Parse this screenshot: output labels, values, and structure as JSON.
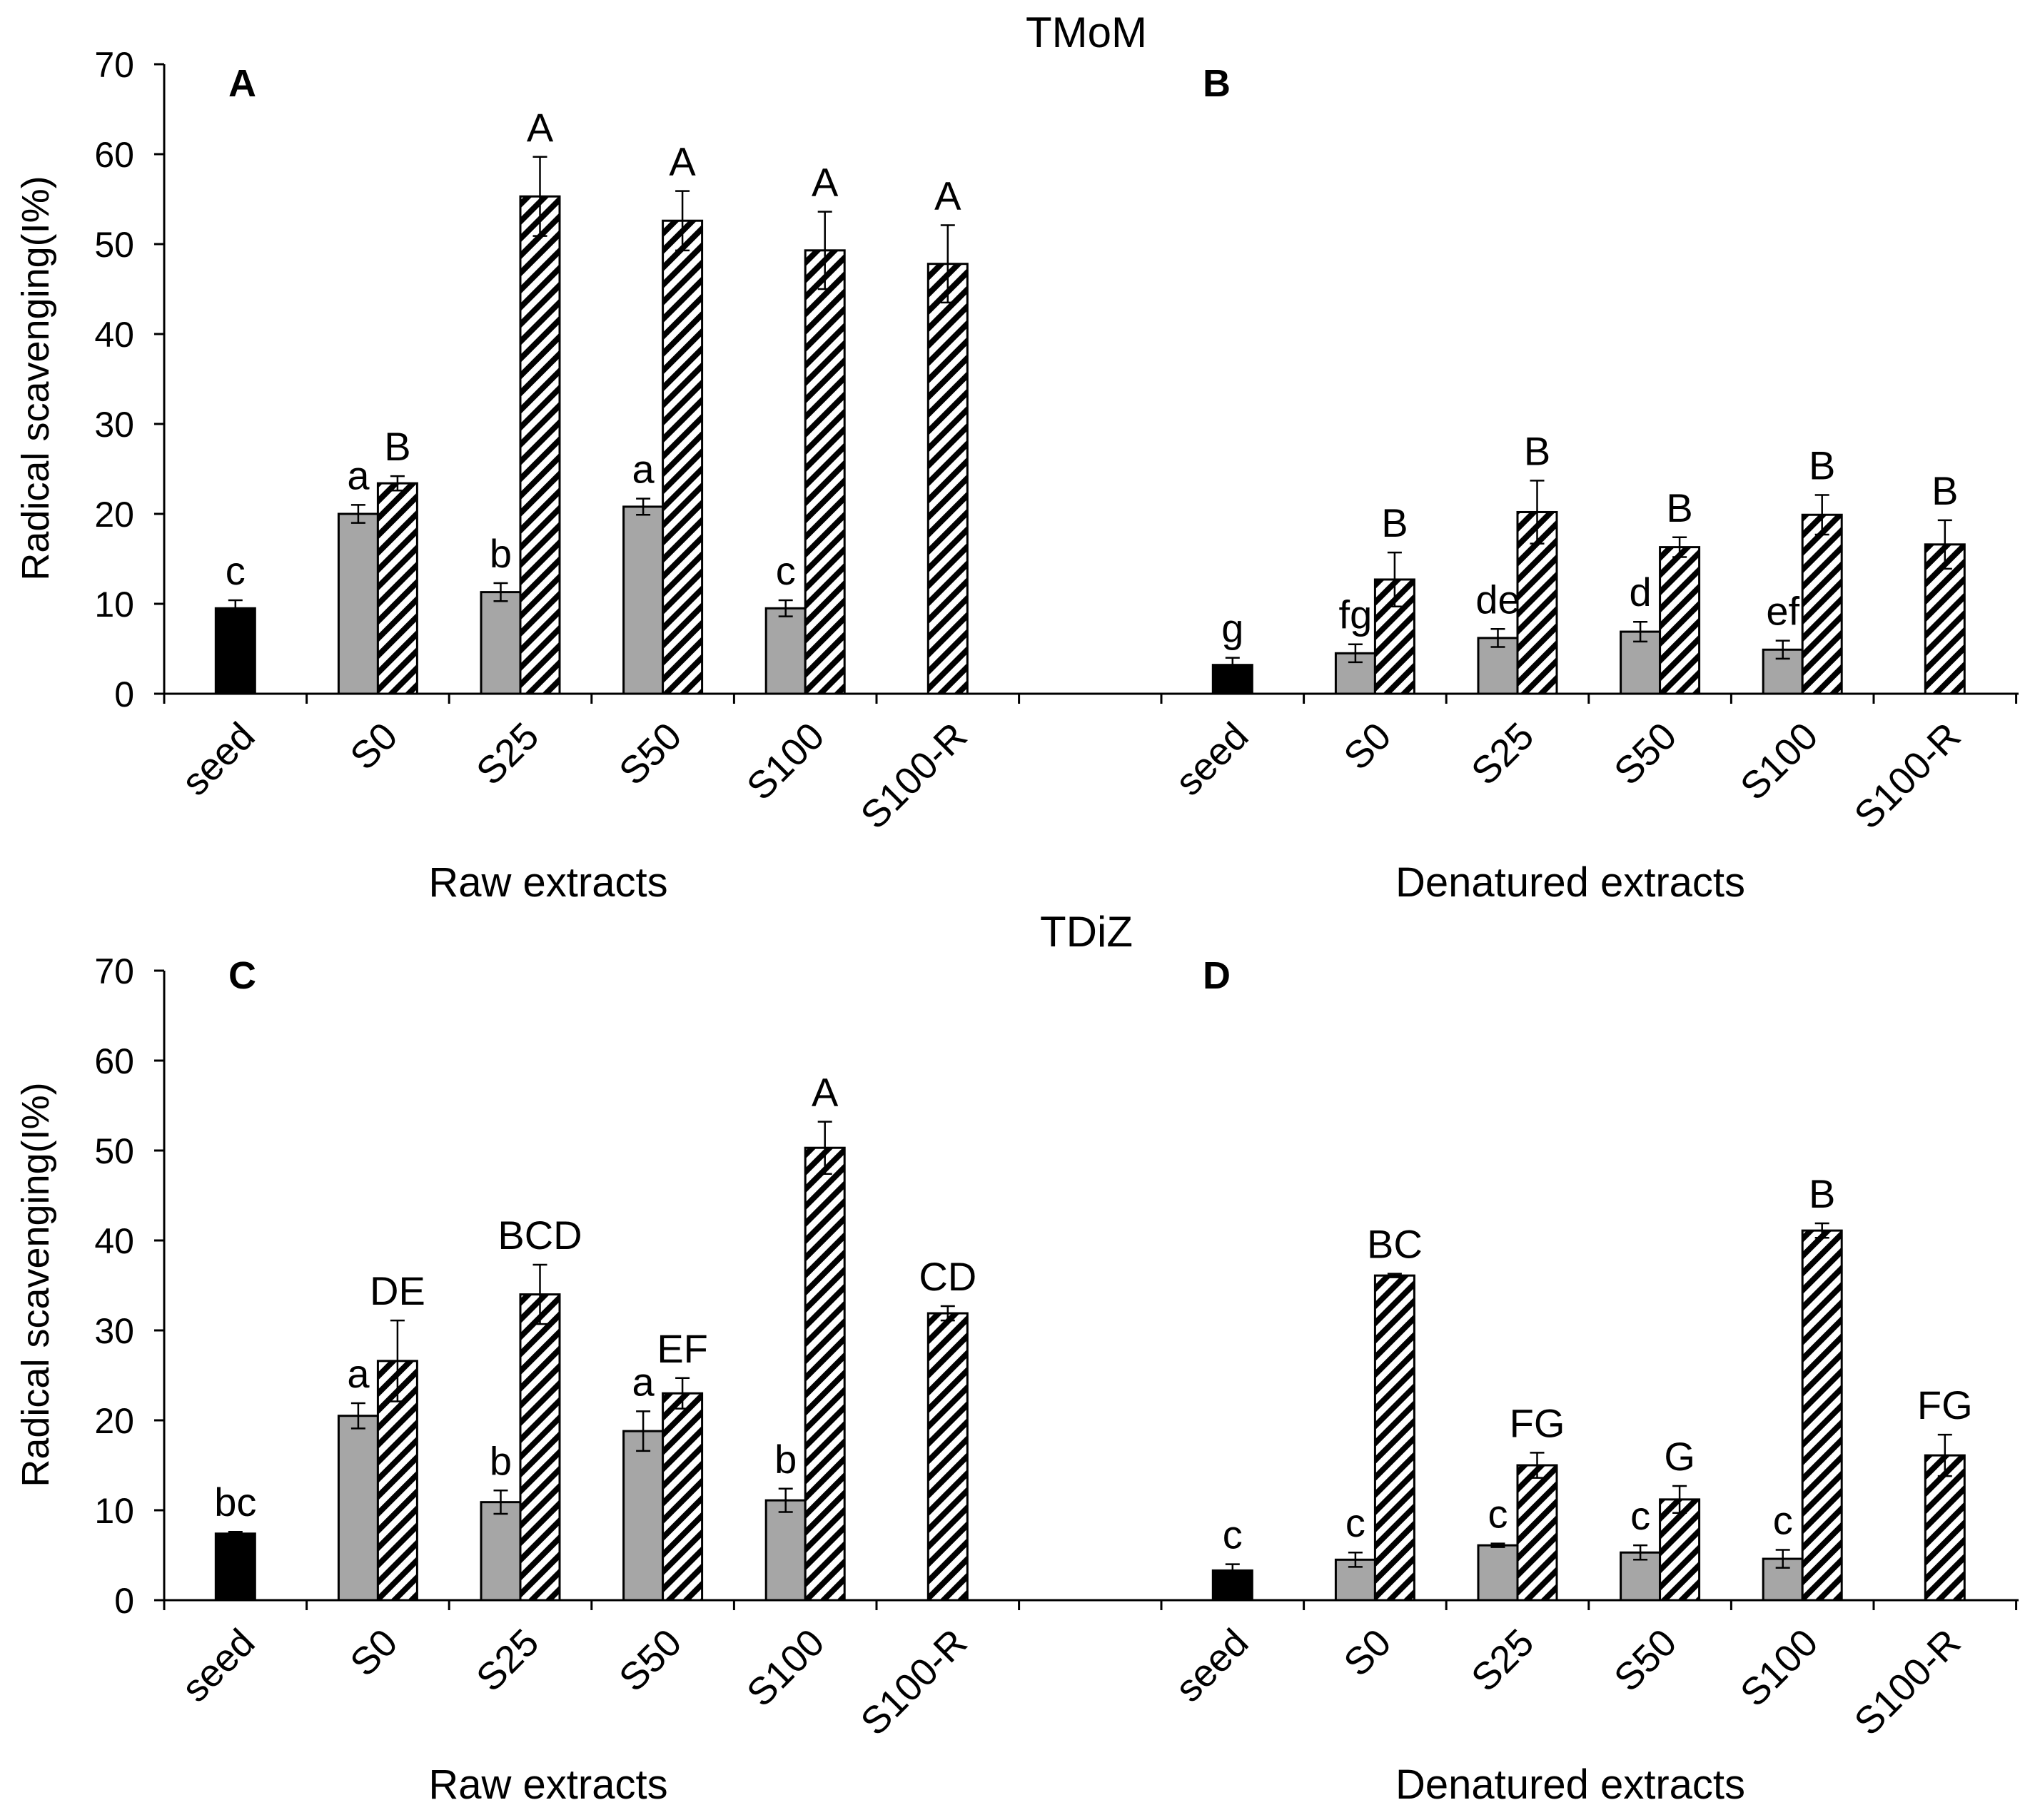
{
  "colors": {
    "seed": "#000000",
    "gray": "#a6a6a6",
    "hatch": "#000000",
    "axis": "#000000"
  },
  "chart_data": [
    {
      "type": "bar",
      "title": "TMoM",
      "ylabel": "Radical scavenging(I%)",
      "ylim": [
        0,
        70
      ],
      "yticks": [
        "0",
        "10",
        "20",
        "30",
        "40",
        "50",
        "60",
        "70"
      ],
      "legend": "none",
      "panels": [
        {
          "letter": "A",
          "xlabel": "Raw extracts",
          "categories": [
            "seed",
            "S0",
            "S25",
            "S50",
            "S100",
            "S100-R"
          ],
          "series": [
            {
              "name": "seed",
              "style": "black",
              "values": [
                9.5,
                null,
                null,
                null,
                null,
                null
              ],
              "errors": [
                0.9,
                null,
                null,
                null,
                null,
                null
              ],
              "labels": [
                "c",
                null,
                null,
                null,
                null,
                null
              ]
            },
            {
              "name": "gray",
              "style": "gray",
              "values": [
                null,
                20.0,
                11.3,
                20.8,
                9.5,
                null
              ],
              "errors": [
                null,
                1.0,
                1.0,
                0.9,
                0.9,
                null
              ],
              "labels": [
                null,
                "a",
                "b",
                "a",
                "c",
                null
              ]
            },
            {
              "name": "hatch",
              "style": "hatch",
              "values": [
                null,
                23.4,
                55.3,
                52.6,
                49.3,
                47.8
              ],
              "errors": [
                null,
                0.8,
                4.4,
                3.3,
                4.3,
                4.3
              ],
              "labels": [
                null,
                "B",
                "A",
                "A",
                "A",
                "A"
              ]
            }
          ]
        },
        {
          "letter": "B",
          "xlabel": "Denatured extracts",
          "categories": [
            "seed",
            "S0",
            "S25",
            "S50",
            "S100",
            "S100-R"
          ],
          "series": [
            {
              "name": "seed",
              "style": "black",
              "values": [
                3.2,
                null,
                null,
                null,
                null,
                null
              ],
              "errors": [
                0.8,
                null,
                null,
                null,
                null,
                null
              ],
              "labels": [
                "g",
                null,
                null,
                null,
                null,
                null
              ]
            },
            {
              "name": "gray",
              "style": "gray",
              "values": [
                null,
                4.5,
                6.2,
                6.9,
                4.9,
                null
              ],
              "errors": [
                null,
                1.0,
                1.0,
                1.1,
                1.0,
                null
              ],
              "labels": [
                null,
                "fg",
                "de",
                "d",
                "ef",
                null
              ]
            },
            {
              "name": "hatch",
              "style": "hatch",
              "values": [
                null,
                12.7,
                20.2,
                16.3,
                19.9,
                16.6
              ],
              "errors": [
                null,
                3.0,
                3.5,
                1.1,
                2.2,
                2.7
              ],
              "labels": [
                null,
                "B",
                "B",
                "B",
                "B",
                "B"
              ]
            }
          ]
        }
      ]
    },
    {
      "type": "bar",
      "title": "TDiZ",
      "ylabel": "Radical scavenging(I%)",
      "ylim": [
        0,
        70
      ],
      "yticks": [
        "0",
        "10",
        "20",
        "30",
        "40",
        "50",
        "60",
        "70"
      ],
      "legend": "none",
      "panels": [
        {
          "letter": "C",
          "xlabel": "Raw extracts",
          "categories": [
            "seed",
            "S0",
            "S25",
            "S50",
            "S100",
            "S100-R"
          ],
          "series": [
            {
              "name": "seed",
              "style": "black",
              "values": [
                7.4,
                null,
                null,
                null,
                null,
                null
              ],
              "errors": [
                0.2,
                null,
                null,
                null,
                null,
                null
              ],
              "labels": [
                "bc",
                null,
                null,
                null,
                null,
                null
              ]
            },
            {
              "name": "gray",
              "style": "gray",
              "values": [
                null,
                20.5,
                10.9,
                18.8,
                11.1,
                null
              ],
              "errors": [
                null,
                1.4,
                1.3,
                2.2,
                1.3,
                null
              ],
              "labels": [
                null,
                "a",
                "b",
                "a",
                "b",
                null
              ]
            },
            {
              "name": "hatch",
              "style": "hatch",
              "values": [
                null,
                26.6,
                34.0,
                23.0,
                50.3,
                31.9
              ],
              "errors": [
                null,
                4.5,
                3.3,
                1.7,
                2.9,
                0.8
              ],
              "labels": [
                null,
                "DE",
                "BCD",
                "EF",
                "A",
                "CD"
              ]
            }
          ]
        },
        {
          "letter": "D",
          "xlabel": "Denatured extracts",
          "categories": [
            "seed",
            "S0",
            "S25",
            "S50",
            "S100",
            "S100-R"
          ],
          "series": [
            {
              "name": "seed",
              "style": "black",
              "values": [
                3.3,
                null,
                null,
                null,
                null,
                null
              ],
              "errors": [
                0.7,
                null,
                null,
                null,
                null,
                null
              ],
              "labels": [
                "c",
                null,
                null,
                null,
                null,
                null
              ]
            },
            {
              "name": "gray",
              "style": "gray",
              "values": [
                null,
                4.5,
                6.1,
                5.3,
                4.6,
                null
              ],
              "errors": [
                null,
                0.8,
                0.2,
                0.8,
                1.0,
                null
              ],
              "labels": [
                null,
                "c",
                "c",
                "c",
                "c",
                null
              ]
            },
            {
              "name": "hatch",
              "style": "hatch",
              "values": [
                null,
                36.1,
                15.0,
                11.2,
                41.1,
                16.1
              ],
              "errors": [
                null,
                0.2,
                1.4,
                1.5,
                0.8,
                2.3
              ],
              "labels": [
                null,
                "BC",
                "FG",
                "G",
                "B",
                "FG"
              ]
            }
          ]
        }
      ]
    }
  ]
}
